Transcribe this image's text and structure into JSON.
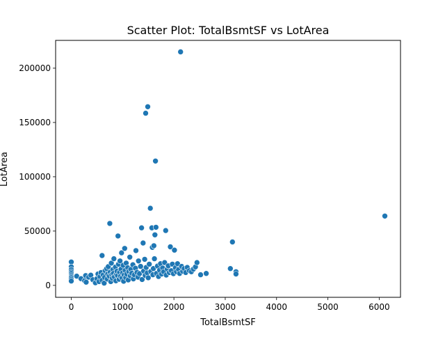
{
  "chart_data": {
    "type": "scatter",
    "title": "Scatter Plot: TotalBsmtSF vs LotArea",
    "xlabel": "TotalBsmtSF",
    "ylabel": "LotArea",
    "xlim": [
      -305,
      6415
    ],
    "ylim": [
      -11000,
      225600
    ],
    "xticks": [
      0,
      1000,
      2000,
      3000,
      4000,
      5000,
      6000
    ],
    "yticks": [
      0,
      50000,
      100000,
      150000,
      200000
    ],
    "xtick_labels": [
      "0",
      "1000",
      "2000",
      "3000",
      "4000",
      "5000",
      "6000"
    ],
    "ytick_labels": [
      "0",
      "50000",
      "100000",
      "150000",
      "200000"
    ],
    "grid": false,
    "legend": "none",
    "marker_color": "#1f77b4",
    "points": [
      [
        0,
        21500
      ],
      [
        0,
        17000
      ],
      [
        0,
        14500
      ],
      [
        0,
        12500
      ],
      [
        0,
        11000
      ],
      [
        0,
        9500
      ],
      [
        0,
        8200
      ],
      [
        0,
        7000
      ],
      [
        0,
        5500
      ],
      [
        0,
        4000
      ],
      [
        105,
        8500
      ],
      [
        190,
        6200
      ],
      [
        260,
        4300
      ],
      [
        290,
        3000
      ],
      [
        280,
        9000
      ],
      [
        340,
        7600
      ],
      [
        380,
        9400
      ],
      [
        420,
        5200
      ],
      [
        470,
        2400
      ],
      [
        500,
        6100
      ],
      [
        520,
        10500
      ],
      [
        540,
        3500
      ],
      [
        560,
        8000
      ],
      [
        580,
        11800
      ],
      [
        600,
        27500
      ],
      [
        600,
        4700
      ],
      [
        620,
        9600
      ],
      [
        640,
        2100
      ],
      [
        650,
        7300
      ],
      [
        660,
        13500
      ],
      [
        690,
        15500
      ],
      [
        700,
        5800
      ],
      [
        710,
        10400
      ],
      [
        720,
        17200
      ],
      [
        740,
        8600
      ],
      [
        750,
        57000
      ],
      [
        760,
        12200
      ],
      [
        770,
        3500
      ],
      [
        780,
        20500
      ],
      [
        790,
        9800
      ],
      [
        800,
        6500
      ],
      [
        810,
        14500
      ],
      [
        820,
        11000
      ],
      [
        830,
        24500
      ],
      [
        840,
        7800
      ],
      [
        860,
        16800
      ],
      [
        870,
        4200
      ],
      [
        880,
        10200
      ],
      [
        890,
        13000
      ],
      [
        900,
        9000
      ],
      [
        910,
        45500
      ],
      [
        920,
        19500
      ],
      [
        930,
        5600
      ],
      [
        940,
        12000
      ],
      [
        950,
        22500
      ],
      [
        960,
        8400
      ],
      [
        970,
        15000
      ],
      [
        980,
        30000
      ],
      [
        990,
        6800
      ],
      [
        1000,
        11500
      ],
      [
        1010,
        18500
      ],
      [
        1020,
        3800
      ],
      [
        1030,
        9500
      ],
      [
        1040,
        34000
      ],
      [
        1050,
        13800
      ],
      [
        1060,
        7200
      ],
      [
        1070,
        20500
      ],
      [
        1080,
        10500
      ],
      [
        1100,
        16200
      ],
      [
        1110,
        5000
      ],
      [
        1120,
        12800
      ],
      [
        1140,
        26000
      ],
      [
        1150,
        8800
      ],
      [
        1160,
        14800
      ],
      [
        1180,
        11200
      ],
      [
        1200,
        19000
      ],
      [
        1210,
        6000
      ],
      [
        1230,
        9700
      ],
      [
        1250,
        15800
      ],
      [
        1260,
        32000
      ],
      [
        1280,
        12000
      ],
      [
        1300,
        7600
      ],
      [
        1310,
        22500
      ],
      [
        1330,
        10800
      ],
      [
        1350,
        17500
      ],
      [
        1370,
        53000
      ],
      [
        1380,
        5400
      ],
      [
        1400,
        39000
      ],
      [
        1410,
        13200
      ],
      [
        1430,
        24000
      ],
      [
        1440,
        9200
      ],
      [
        1450,
        158500
      ],
      [
        1460,
        16500
      ],
      [
        1480,
        11500
      ],
      [
        1490,
        164500
      ],
      [
        1500,
        7000
      ],
      [
        1520,
        19500
      ],
      [
        1540,
        71000
      ],
      [
        1550,
        12800
      ],
      [
        1570,
        53000
      ],
      [
        1580,
        35000
      ],
      [
        1590,
        9800
      ],
      [
        1600,
        15500
      ],
      [
        1610,
        36500
      ],
      [
        1620,
        24500
      ],
      [
        1630,
        46500
      ],
      [
        1640,
        114500
      ],
      [
        1650,
        53500
      ],
      [
        1660,
        11000
      ],
      [
        1680,
        17800
      ],
      [
        1700,
        8200
      ],
      [
        1720,
        14000
      ],
      [
        1740,
        20000
      ],
      [
        1760,
        10500
      ],
      [
        1780,
        16000
      ],
      [
        1800,
        12500
      ],
      [
        1820,
        21000
      ],
      [
        1840,
        50500
      ],
      [
        1850,
        9500
      ],
      [
        1870,
        15000
      ],
      [
        1890,
        18000
      ],
      [
        1910,
        11800
      ],
      [
        1930,
        35500
      ],
      [
        1950,
        13500
      ],
      [
        1970,
        19500
      ],
      [
        1990,
        10800
      ],
      [
        2010,
        32500
      ],
      [
        2030,
        16200
      ],
      [
        2050,
        12500
      ],
      [
        2070,
        20000
      ],
      [
        2090,
        14500
      ],
      [
        2110,
        11000
      ],
      [
        2130,
        215000
      ],
      [
        2150,
        17500
      ],
      [
        2170,
        13000
      ],
      [
        2200,
        15500
      ],
      [
        2230,
        11800
      ],
      [
        2260,
        16500
      ],
      [
        2300,
        13500
      ],
      [
        2340,
        12500
      ],
      [
        2380,
        15000
      ],
      [
        2420,
        17000
      ],
      [
        2450,
        21000
      ],
      [
        2520,
        9800
      ],
      [
        2630,
        11000
      ],
      [
        3100,
        15500
      ],
      [
        3140,
        40000
      ],
      [
        3210,
        12500
      ],
      [
        3210,
        10500
      ],
      [
        6110,
        63800
      ]
    ]
  }
}
